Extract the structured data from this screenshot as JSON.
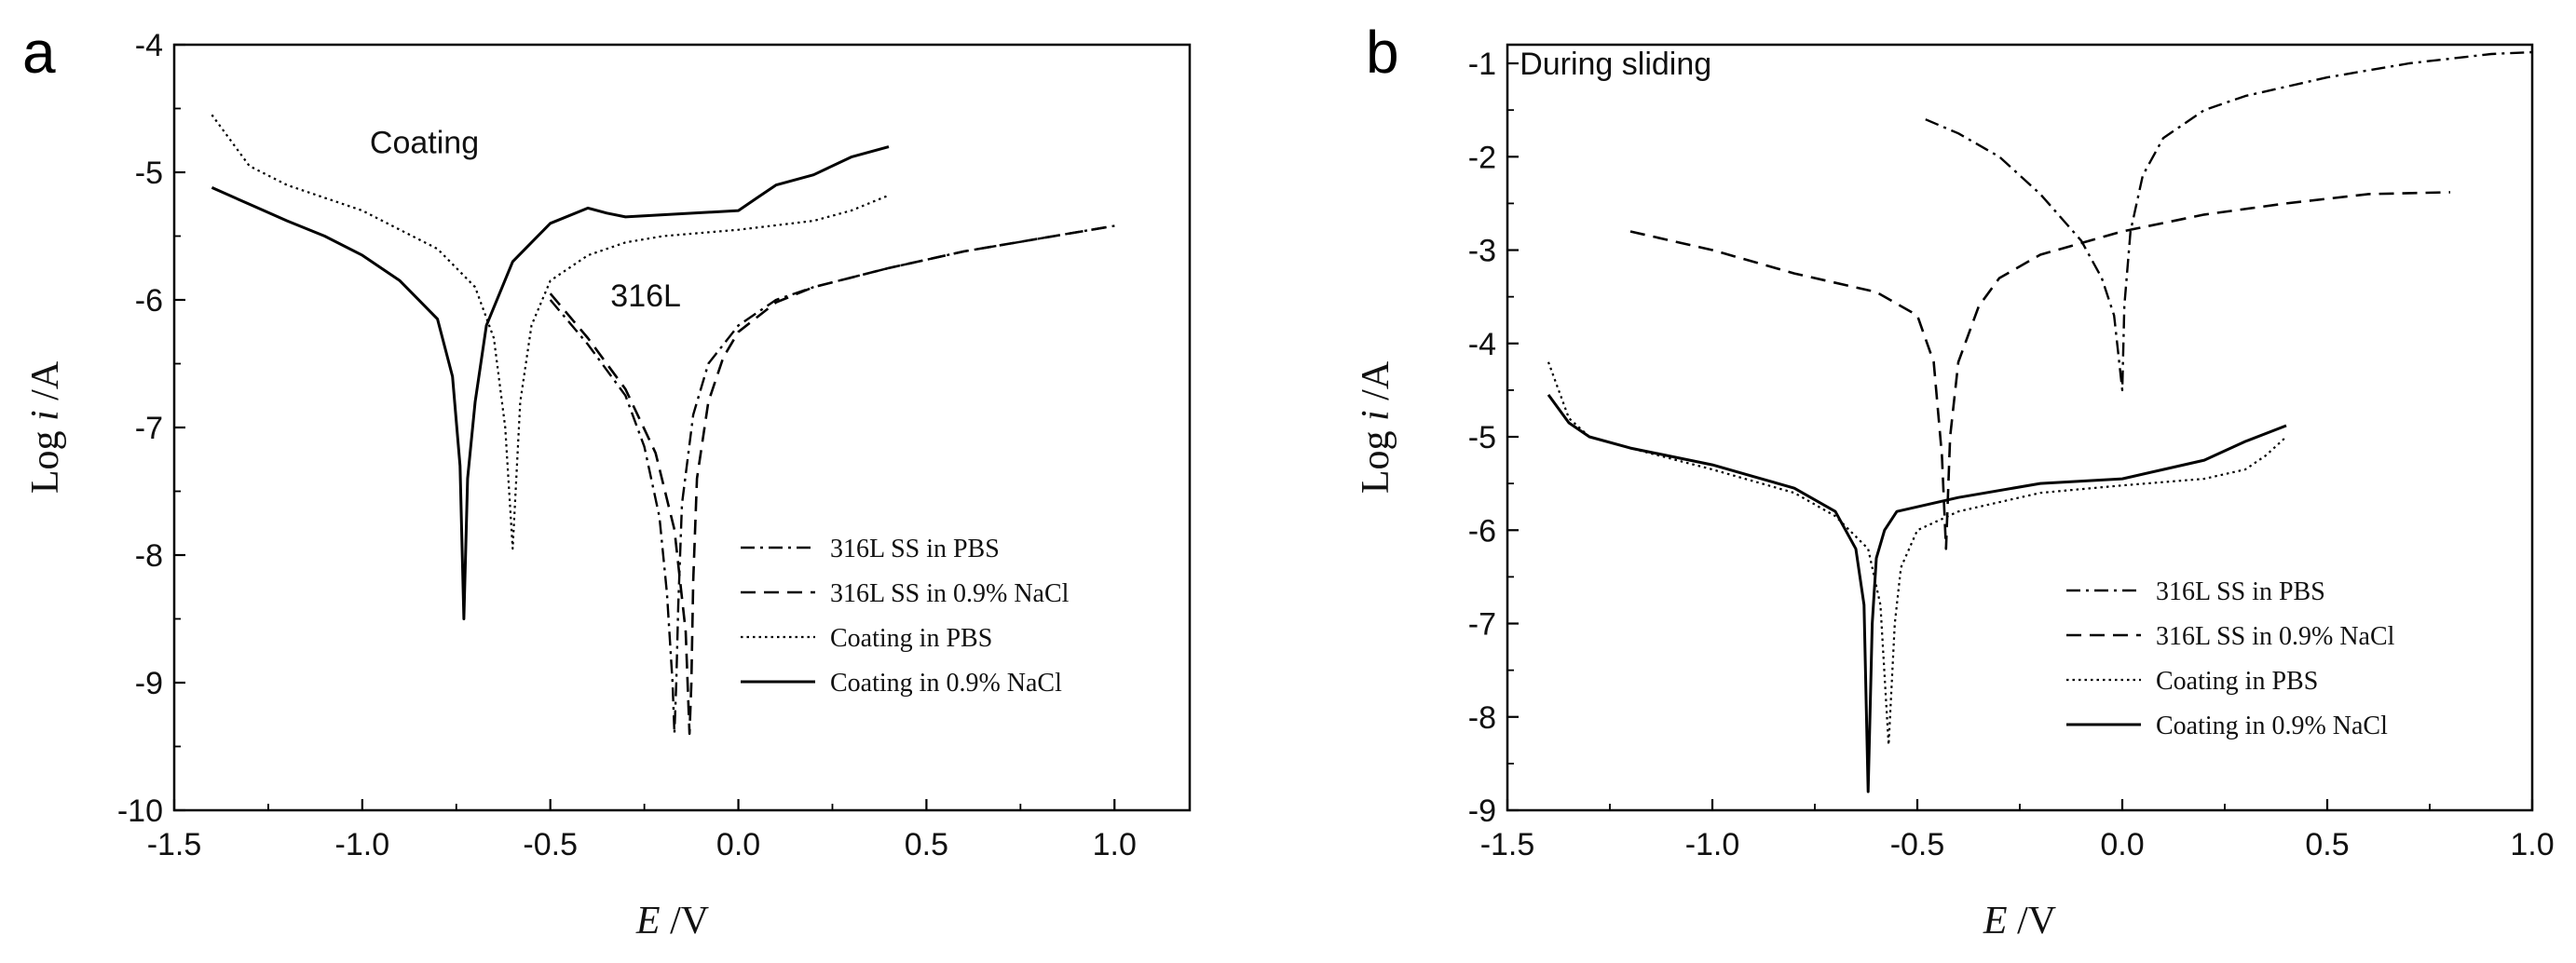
{
  "chart_data": [
    {
      "type": "line",
      "panel": "a",
      "xlabel_main": "E",
      "xlabel_unit": " /V",
      "ylabel_main": "Log ",
      "ylabel_italic": "i",
      "ylabel_unit": " /A",
      "xlim": [
        -1.5,
        1.2
      ],
      "ylim": [
        -10,
        -4
      ],
      "xticks": [
        -1.5,
        -1.0,
        -0.5,
        0.0,
        0.5,
        1.0
      ],
      "xtick_labels": [
        "-1.5",
        "-1.0",
        "-0.5",
        "0.0",
        "0.5",
        "1.0"
      ],
      "yticks": [
        -10,
        -9,
        -8,
        -7,
        -6,
        -5,
        -4
      ],
      "ytick_labels": [
        "-10",
        "-9",
        "-8",
        "-7",
        "-6",
        "-5",
        "-4"
      ],
      "annotations": [
        {
          "text": "Coating",
          "x": -0.98,
          "y": -4.85
        },
        {
          "text": "316L",
          "x": -0.34,
          "y": -6.05
        }
      ],
      "legend_position": "lower-right",
      "series": [
        {
          "name": "316L SS in PBS",
          "style": "dashdot",
          "x": [
            -0.5,
            -0.4,
            -0.3,
            -0.25,
            -0.21,
            -0.19,
            -0.175,
            -0.17,
            -0.165,
            -0.16,
            -0.15,
            -0.12,
            -0.08,
            0.0,
            0.1,
            0.2,
            0.4,
            0.6,
            0.8,
            1.0
          ],
          "y": [
            -6.0,
            -6.35,
            -6.75,
            -7.15,
            -7.7,
            -8.3,
            -9.0,
            -9.4,
            -9.0,
            -8.4,
            -7.6,
            -6.9,
            -6.5,
            -6.2,
            -6.0,
            -5.9,
            -5.75,
            -5.62,
            -5.52,
            -5.42
          ]
        },
        {
          "name": "316L SS in 0.9% NaCl",
          "style": "dashed",
          "x": [
            -0.5,
            -0.4,
            -0.3,
            -0.22,
            -0.17,
            -0.14,
            -0.13,
            -0.125,
            -0.12,
            -0.11,
            -0.08,
            -0.04,
            0.0,
            0.1,
            0.2,
            0.4,
            0.6,
            0.8,
            1.0
          ],
          "y": [
            -5.95,
            -6.3,
            -6.7,
            -7.2,
            -7.8,
            -8.6,
            -9.4,
            -9.0,
            -8.2,
            -7.4,
            -6.8,
            -6.45,
            -6.25,
            -6.02,
            -5.9,
            -5.75,
            -5.62,
            -5.52,
            -5.42
          ]
        },
        {
          "name": "Coating in PBS",
          "style": "dotted",
          "x": [
            -1.4,
            -1.3,
            -1.2,
            -1.1,
            -1.0,
            -0.9,
            -0.8,
            -0.7,
            -0.65,
            -0.62,
            -0.6,
            -0.58,
            -0.55,
            -0.5,
            -0.4,
            -0.3,
            -0.2,
            0.0,
            0.2,
            0.3,
            0.4
          ],
          "y": [
            -4.55,
            -4.95,
            -5.1,
            -5.2,
            -5.3,
            -5.45,
            -5.6,
            -5.9,
            -6.3,
            -7.0,
            -7.95,
            -6.8,
            -6.2,
            -5.85,
            -5.65,
            -5.55,
            -5.5,
            -5.45,
            -5.38,
            -5.3,
            -5.18
          ]
        },
        {
          "name": "Coating in 0.9% NaCl",
          "style": "solid",
          "x": [
            -1.4,
            -1.3,
            -1.2,
            -1.1,
            -1.0,
            -0.9,
            -0.8,
            -0.76,
            -0.74,
            -0.73,
            -0.72,
            -0.7,
            -0.67,
            -0.6,
            -0.5,
            -0.4,
            -0.35,
            -0.3,
            0.0,
            0.05,
            0.1,
            0.2,
            0.3,
            0.4
          ],
          "y": [
            -5.12,
            -5.25,
            -5.38,
            -5.5,
            -5.65,
            -5.85,
            -6.15,
            -6.6,
            -7.3,
            -8.5,
            -7.4,
            -6.8,
            -6.2,
            -5.7,
            -5.4,
            -5.28,
            -5.32,
            -5.35,
            -5.3,
            -5.2,
            -5.1,
            -5.02,
            -4.88,
            -4.8
          ]
        }
      ]
    },
    {
      "type": "line",
      "panel": "b",
      "xlabel_main": "E",
      "xlabel_unit": " /V",
      "ylabel_main": "Log ",
      "ylabel_italic": "i",
      "ylabel_unit": " /A",
      "xlim": [
        -1.5,
        1.0
      ],
      "ylim": [
        -9,
        -0.8
      ],
      "xticks": [
        -1.5,
        -1.0,
        -0.5,
        0.0,
        0.5,
        1.0
      ],
      "xtick_labels": [
        "-1.5",
        "-1.0",
        "-0.5",
        "0.0",
        "0.5",
        "1.0"
      ],
      "yticks": [
        -9,
        -8,
        -7,
        -6,
        -5,
        -4,
        -3,
        -2,
        -1
      ],
      "ytick_labels": [
        "-9",
        "-8",
        "-7",
        "-6",
        "-5",
        "-4",
        "-3",
        "-2",
        "-1"
      ],
      "annotations": [
        {
          "text": "During sliding",
          "x": -1.47,
          "y": -1.12
        }
      ],
      "legend_position": "lower-right",
      "series": [
        {
          "name": "316L SS in PBS",
          "style": "dashdot",
          "x": [
            -0.48,
            -0.4,
            -0.3,
            -0.2,
            -0.1,
            -0.05,
            -0.02,
            0.0,
            0.005,
            0.02,
            0.05,
            0.1,
            0.2,
            0.3,
            0.5,
            0.7,
            0.9,
            1.0
          ],
          "y": [
            -1.6,
            -1.75,
            -2.0,
            -2.4,
            -2.9,
            -3.3,
            -3.7,
            -4.5,
            -3.6,
            -2.8,
            -2.2,
            -1.8,
            -1.5,
            -1.35,
            -1.15,
            -1.0,
            -0.9,
            -0.88
          ]
        },
        {
          "name": "316L SS in 0.9% NaCl",
          "style": "dashed",
          "x": [
            -1.2,
            -1.0,
            -0.8,
            -0.6,
            -0.5,
            -0.46,
            -0.44,
            -0.43,
            -0.42,
            -0.4,
            -0.35,
            -0.3,
            -0.2,
            0.0,
            0.2,
            0.4,
            0.6,
            0.8
          ],
          "y": [
            -2.8,
            -3.0,
            -3.25,
            -3.45,
            -3.7,
            -4.2,
            -5.2,
            -6.2,
            -5.0,
            -4.2,
            -3.6,
            -3.3,
            -3.05,
            -2.8,
            -2.62,
            -2.5,
            -2.4,
            -2.38
          ]
        },
        {
          "name": "Coating in PBS",
          "style": "dotted",
          "x": [
            -1.4,
            -1.35,
            -1.3,
            -1.2,
            -1.0,
            -0.8,
            -0.7,
            -0.62,
            -0.59,
            -0.57,
            -0.555,
            -0.54,
            -0.5,
            -0.4,
            -0.2,
            0.0,
            0.2,
            0.3,
            0.35,
            0.4
          ],
          "y": [
            -4.2,
            -4.8,
            -5.0,
            -5.12,
            -5.35,
            -5.6,
            -5.85,
            -6.2,
            -6.8,
            -8.3,
            -7.0,
            -6.4,
            -6.0,
            -5.8,
            -5.6,
            -5.52,
            -5.45,
            -5.35,
            -5.2,
            -5.0
          ]
        },
        {
          "name": "Coating in 0.9% NaCl",
          "style": "solid",
          "x": [
            -1.4,
            -1.35,
            -1.3,
            -1.2,
            -1.0,
            -0.8,
            -0.7,
            -0.65,
            -0.63,
            -0.62,
            -0.61,
            -0.6,
            -0.58,
            -0.55,
            -0.5,
            -0.4,
            -0.2,
            0.0,
            0.1,
            0.2,
            0.3,
            0.4
          ],
          "y": [
            -4.55,
            -4.85,
            -5.0,
            -5.12,
            -5.3,
            -5.55,
            -5.8,
            -6.2,
            -6.8,
            -8.8,
            -7.0,
            -6.3,
            -6.0,
            -5.8,
            -5.75,
            -5.65,
            -5.5,
            -5.45,
            -5.35,
            -5.25,
            -5.05,
            -4.88
          ]
        }
      ]
    }
  ]
}
